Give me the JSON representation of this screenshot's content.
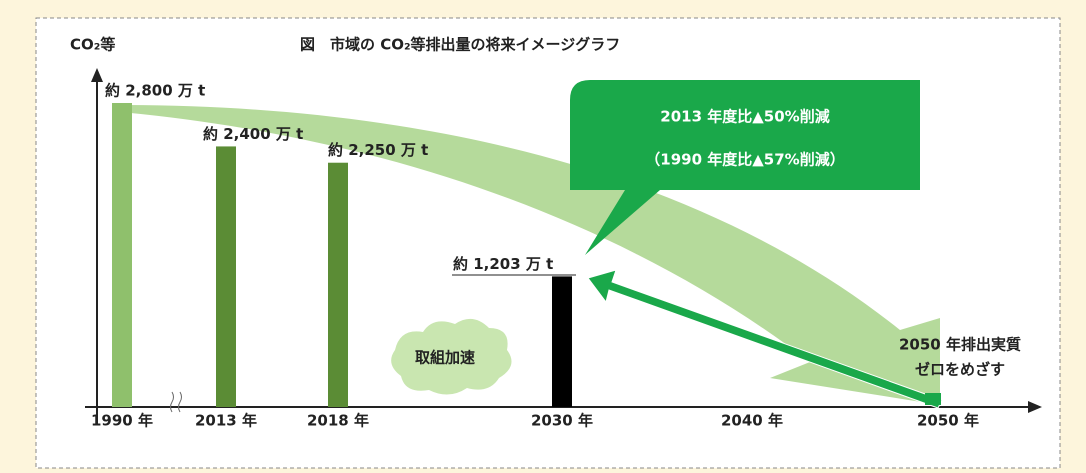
{
  "chart_data": {
    "type": "bar",
    "title": "図　市域の CO₂等排出量の将来イメージグラフ",
    "y_label": "CO₂等",
    "categories": [
      "1990 年",
      "2013 年",
      "2018 年",
      "2030 年",
      "2040 年",
      "2050 年"
    ],
    "values": [
      2800,
      2400,
      2250,
      1203,
      null,
      0
    ],
    "value_labels": [
      "約 2,800 万 t",
      "約 2,400 万 t",
      "約 2,250 万 t",
      "約 1,203 万 t",
      null,
      null
    ],
    "colors": [
      "#8fc06c",
      "#5b8c35",
      "#5b8c35",
      "#000000",
      null,
      "#1aa84a"
    ],
    "ylim": [
      0,
      2800
    ],
    "callout": [
      "2013 年度比▲50%削減",
      "（1990 年度比▲57%削減）"
    ],
    "cloud": "取組加速",
    "goal": [
      "2050 年排出実質",
      "ゼロをめざす"
    ]
  }
}
